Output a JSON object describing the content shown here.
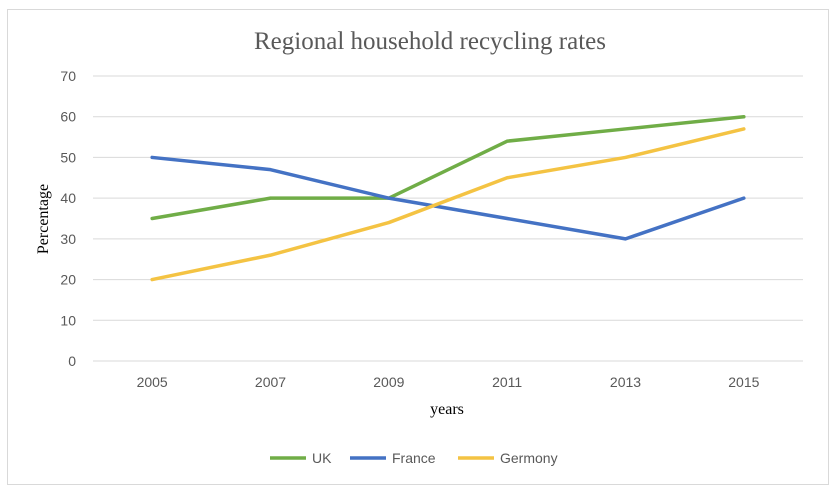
{
  "chart_data": {
    "type": "line",
    "title": "Regional household recycling rates",
    "xlabel": "years",
    "ylabel": "Percentage",
    "categories": [
      "2005",
      "2007",
      "2009",
      "2011",
      "2013",
      "2015"
    ],
    "y_ticks": [
      "0",
      "10",
      "20",
      "30",
      "40",
      "50",
      "60",
      "70"
    ],
    "ylim": [
      0,
      70
    ],
    "grid": true,
    "legend_position": "bottom",
    "series": [
      {
        "name": "UK",
        "color": "#70ad47",
        "values": [
          35,
          40,
          40,
          54,
          57,
          60
        ]
      },
      {
        "name": "France",
        "color": "#4472c4",
        "values": [
          50,
          47,
          40,
          35,
          30,
          40
        ]
      },
      {
        "name": "Germony",
        "color": "#f4c343",
        "values": [
          20,
          26,
          34,
          45,
          50,
          57
        ]
      }
    ]
  }
}
